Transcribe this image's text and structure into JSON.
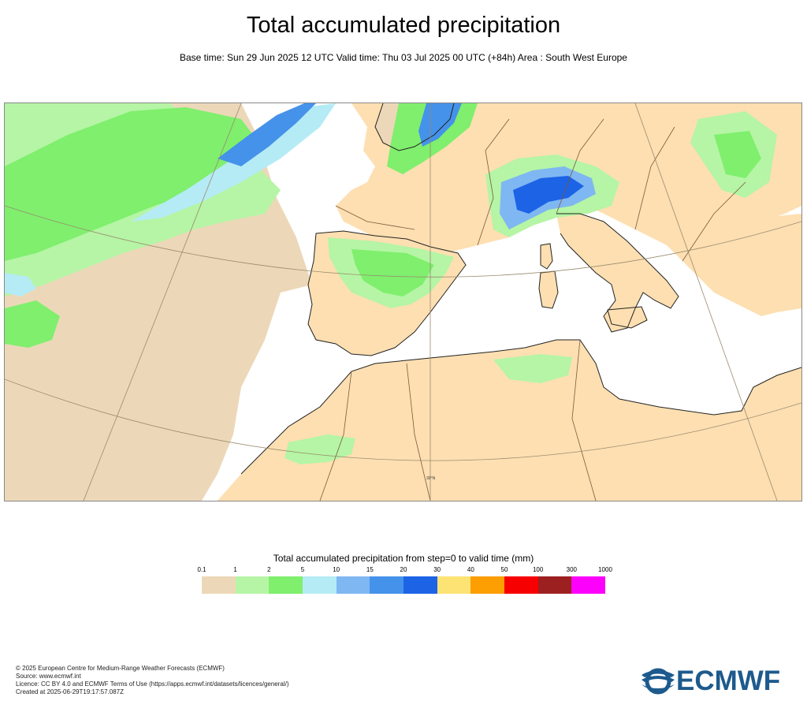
{
  "title": "Total accumulated precipitation",
  "subtitle": "Base time: Sun 29 Jun 2025 12 UTC Valid time: Thu 03 Jul 2025 00 UTC (+84h) Area : South West Europe",
  "map": {
    "graticule_label": "30°N",
    "colors": {
      "sea": "#ffffff",
      "land_dry": "#fddfb1",
      "coast": "#222222",
      "border": "#7a5a3c",
      "graticule": "#9a8a70"
    }
  },
  "legend": {
    "title": "Total accumulated precipitation from step=0 to valid time (mm)",
    "ticks": [
      "0.1",
      "1",
      "2",
      "5",
      "10",
      "15",
      "20",
      "30",
      "40",
      "50",
      "100",
      "300",
      "1000"
    ],
    "colors": [
      "#ecd8b8",
      "#b5f5a5",
      "#7fef6d",
      "#b5ebf5",
      "#7fb7f2",
      "#4592ea",
      "#1d63e6",
      "#fde374",
      "#fd9e03",
      "#f70002",
      "#9d2020",
      "#fc01fc"
    ]
  },
  "footer": {
    "line1": "© 2025 European Centre for Medium-Range Weather Forecasts (ECMWF)",
    "line2": "Source: www.ecmwf.int",
    "line3": "Licence: CC BY 4.0 and ECMWF Terms of Use (https://apps.ecmwf.int/datasets/licences/general/)",
    "line4": "Created at 2025-06-29T19:17:57.087Z"
  },
  "logo": {
    "text": "ECMWF",
    "color": "#1d5a8d"
  }
}
